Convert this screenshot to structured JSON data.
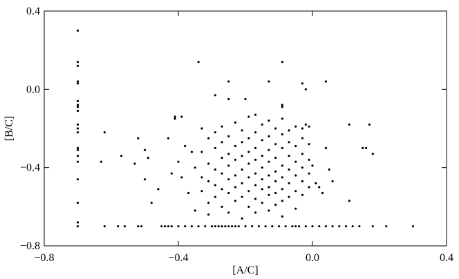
{
  "chart_data": {
    "type": "scatter",
    "x_label": "[A/C]",
    "y_label": "[B/C]",
    "color": "#000000",
    "xlim": [
      -0.8,
      0.4
    ],
    "ylim": [
      -0.8,
      0.4
    ],
    "xticks": [
      {
        "value": -0.8,
        "label": "−0.8"
      },
      {
        "value": -0.4,
        "label": "−0.4"
      },
      {
        "value": 0,
        "label": "0.0"
      },
      0.4
    ],
    "yticks": [
      {
        "value": -0.8,
        "label": "−0.8"
      },
      {
        "value": -0.4,
        "label": "−0.4"
      },
      {
        "value": 0,
        "label": "0.0"
      },
      0.4
    ],
    "x": [
      -0.7,
      -0.7,
      -0.7,
      -0.7,
      -0.7,
      -0.7,
      -0.7,
      -0.7,
      -0.7,
      -0.7,
      -0.7,
      -0.7,
      -0.7,
      -0.7,
      -0.7,
      -0.7,
      -0.7,
      -0.7,
      -0.7,
      -0.7,
      -0.62,
      -0.58,
      -0.56,
      -0.52,
      -0.51,
      -0.45,
      -0.44,
      -0.43,
      -0.42,
      -0.4,
      -0.38,
      -0.36,
      -0.34,
      -0.32,
      -0.3,
      -0.29,
      -0.28,
      -0.27,
      -0.26,
      -0.25,
      -0.24,
      -0.23,
      -0.22,
      -0.2,
      -0.18,
      -0.16,
      -0.14,
      -0.12,
      -0.1,
      -0.08,
      -0.06,
      -0.05,
      -0.04,
      -0.02,
      0.0,
      0.02,
      0.04,
      0.06,
      0.08,
      0.1,
      0.12,
      0.14,
      0.18,
      0.22,
      0.3,
      -0.34,
      -0.09,
      -0.25,
      -0.13,
      0.04,
      -0.03,
      -0.02,
      -0.29,
      -0.25,
      -0.2,
      -0.09,
      -0.09,
      -0.62,
      -0.57,
      -0.52,
      -0.53,
      -0.5,
      -0.49,
      -0.5,
      -0.48,
      -0.46,
      -0.43,
      -0.41,
      -0.41,
      -0.39,
      -0.4,
      -0.42,
      -0.39,
      -0.38,
      -0.36,
      -0.37,
      -0.35,
      -0.35,
      -0.63,
      0.11,
      0.17,
      0.15,
      0.16,
      0.18,
      0.11,
      0.05,
      0.04,
      0.06,
      0.03,
      0.02,
      0.01,
      0.0,
      -0.01,
      -0.02,
      -0.03,
      -0.33,
      -0.33,
      -0.33,
      -0.33,
      -0.31,
      -0.31,
      -0.31,
      -0.31,
      -0.31,
      -0.29,
      -0.29,
      -0.29,
      -0.29,
      -0.29,
      -0.27,
      -0.27,
      -0.27,
      -0.27,
      -0.27,
      -0.27,
      -0.25,
      -0.25,
      -0.25,
      -0.25,
      -0.25,
      -0.25,
      -0.23,
      -0.23,
      -0.23,
      -0.23,
      -0.23,
      -0.23,
      -0.21,
      -0.21,
      -0.21,
      -0.21,
      -0.21,
      -0.21,
      -0.21,
      -0.19,
      -0.19,
      -0.19,
      -0.19,
      -0.19,
      -0.19,
      -0.19,
      -0.17,
      -0.17,
      -0.17,
      -0.17,
      -0.17,
      -0.17,
      -0.17,
      -0.17,
      -0.15,
      -0.15,
      -0.15,
      -0.15,
      -0.15,
      -0.15,
      -0.15,
      -0.13,
      -0.13,
      -0.13,
      -0.13,
      -0.13,
      -0.13,
      -0.13,
      -0.13,
      -0.11,
      -0.11,
      -0.11,
      -0.11,
      -0.11,
      -0.11,
      -0.11,
      -0.09,
      -0.09,
      -0.09,
      -0.09,
      -0.09,
      -0.09,
      -0.09,
      -0.09,
      -0.07,
      -0.07,
      -0.07,
      -0.07,
      -0.07,
      -0.07,
      -0.05,
      -0.05,
      -0.05,
      -0.05,
      -0.05,
      -0.05,
      -0.03,
      -0.03,
      -0.03,
      -0.03,
      -0.03,
      -0.01,
      -0.01,
      -0.01,
      -0.01
    ],
    "values": [
      0.3,
      0.14,
      0.12,
      0.04,
      0.03,
      -0.06,
      -0.08,
      -0.09,
      -0.11,
      -0.18,
      -0.2,
      -0.22,
      -0.3,
      -0.31,
      -0.34,
      -0.37,
      -0.46,
      -0.58,
      -0.68,
      -0.7,
      -0.7,
      -0.7,
      -0.7,
      -0.7,
      -0.7,
      -0.7,
      -0.7,
      -0.7,
      -0.7,
      -0.7,
      -0.7,
      -0.7,
      -0.7,
      -0.7,
      -0.7,
      -0.7,
      -0.7,
      -0.7,
      -0.7,
      -0.7,
      -0.7,
      -0.7,
      -0.7,
      -0.7,
      -0.7,
      -0.7,
      -0.7,
      -0.7,
      -0.7,
      -0.7,
      -0.7,
      -0.7,
      -0.7,
      -0.7,
      -0.7,
      -0.7,
      -0.7,
      -0.7,
      -0.7,
      -0.7,
      -0.7,
      -0.7,
      -0.7,
      -0.7,
      -0.7,
      0.14,
      0.14,
      0.04,
      0.04,
      0.04,
      0.03,
      0.0,
      -0.03,
      -0.05,
      -0.05,
      -0.08,
      -0.09,
      -0.22,
      -0.34,
      -0.25,
      -0.38,
      -0.31,
      -0.35,
      -0.46,
      -0.58,
      -0.51,
      -0.25,
      -0.15,
      -0.14,
      -0.14,
      -0.37,
      -0.43,
      -0.45,
      -0.29,
      -0.32,
      -0.53,
      -0.62,
      -0.4,
      -0.37,
      -0.18,
      -0.18,
      -0.3,
      -0.3,
      -0.33,
      -0.57,
      -0.41,
      -0.3,
      -0.47,
      -0.53,
      -0.5,
      -0.48,
      -0.39,
      -0.19,
      -0.18,
      -0.2,
      -0.2,
      -0.32,
      -0.45,
      -0.52,
      -0.25,
      -0.38,
      -0.47,
      -0.58,
      -0.64,
      -0.22,
      -0.3,
      -0.41,
      -0.49,
      -0.55,
      -0.19,
      -0.27,
      -0.35,
      -0.43,
      -0.51,
      -0.6,
      -0.24,
      -0.33,
      -0.39,
      -0.46,
      -0.53,
      -0.63,
      -0.17,
      -0.29,
      -0.36,
      -0.44,
      -0.5,
      -0.57,
      -0.21,
      -0.27,
      -0.34,
      -0.41,
      -0.48,
      -0.55,
      -0.66,
      -0.14,
      -0.25,
      -0.32,
      -0.38,
      -0.45,
      -0.52,
      -0.6,
      -0.13,
      -0.22,
      -0.3,
      -0.36,
      -0.43,
      -0.49,
      -0.56,
      -0.63,
      -0.18,
      -0.26,
      -0.34,
      -0.4,
      -0.46,
      -0.51,
      -0.58,
      -0.16,
      -0.24,
      -0.31,
      -0.37,
      -0.44,
      -0.5,
      -0.54,
      -0.62,
      -0.2,
      -0.28,
      -0.35,
      -0.42,
      -0.47,
      -0.53,
      -0.59,
      -0.15,
      -0.23,
      -0.3,
      -0.39,
      -0.45,
      -0.51,
      -0.57,
      -0.65,
      -0.21,
      -0.27,
      -0.34,
      -0.41,
      -0.48,
      -0.55,
      -0.19,
      -0.29,
      -0.37,
      -0.44,
      -0.52,
      -0.61,
      -0.25,
      -0.33,
      -0.4,
      -0.47,
      -0.54,
      -0.28,
      -0.36,
      -0.43,
      -0.5
    ]
  }
}
